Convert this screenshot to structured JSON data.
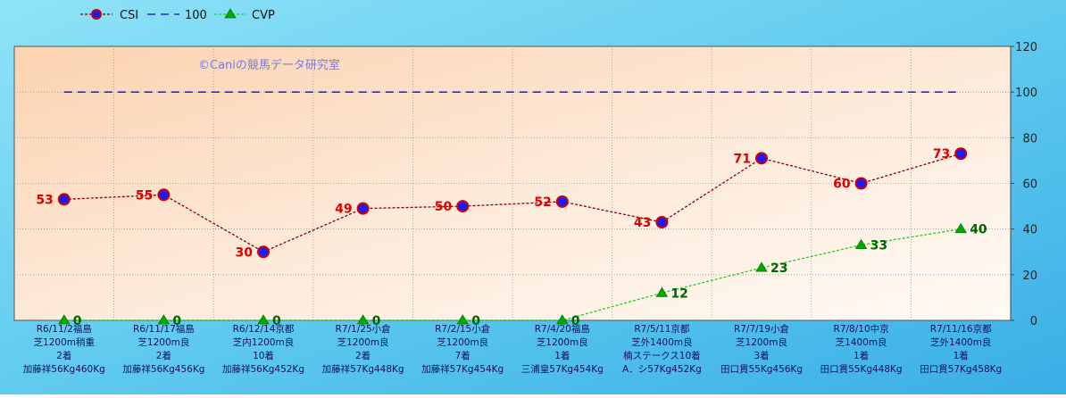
{
  "watermark": "©Caniの競馬データ研究室",
  "legend": [
    {
      "key": "csi",
      "label": "CSI"
    },
    {
      "key": "ref",
      "label": "100"
    },
    {
      "key": "cvp",
      "label": "CVP"
    }
  ],
  "colors": {
    "csi_line": "#8b0000",
    "csi_marker_fill": "#1a1aff",
    "csi_marker_edge": "#cc0000",
    "csi_label": "#e00000",
    "ref_line": "#2a2ad0",
    "cvp_line": "#22cc22",
    "cvp_marker": "#00aa00",
    "cvp_label": "#006400",
    "label_text": "#101060"
  },
  "chart_data": {
    "type": "line",
    "categories": [
      [
        "R6/11/2福島",
        "芝1200m稍重",
        "2着",
        "加藤祥56Kg460Kg"
      ],
      [
        "R6/11/17福島",
        "芝1200m良",
        "2着",
        "加藤祥56Kg456Kg"
      ],
      [
        "R6/12/14京都",
        "芝内1200m良",
        "10着",
        "加藤祥56Kg452Kg"
      ],
      [
        "R7/1/25小倉",
        "芝1200m良",
        "2着",
        "加藤祥57Kg448Kg"
      ],
      [
        "R7/2/15小倉",
        "芝1200m良",
        "7着",
        "加藤祥57Kg454Kg"
      ],
      [
        "R7/4/20福島",
        "芝1200m良",
        "1着",
        "三浦皇57Kg454Kg"
      ],
      [
        "R7/5/11京都",
        "芝外1400m良",
        "楠ステークス10着",
        "A．シ57Kg452Kg"
      ],
      [
        "R7/7/19小倉",
        "芝1200m良",
        "3着",
        "田口貫55Kg456Kg"
      ],
      [
        "R7/8/10中京",
        "芝1400m良",
        "1着",
        "田口貫55Kg448Kg"
      ],
      [
        "R7/11/16京都",
        "芝外1400m良",
        "1着",
        "田口貫57Kg458Kg"
      ]
    ],
    "series": [
      {
        "name": "CSI",
        "values": [
          53,
          55,
          30,
          49,
          50,
          52,
          43,
          71,
          60,
          73
        ]
      },
      {
        "name": "100",
        "values": [
          100,
          100,
          100,
          100,
          100,
          100,
          100,
          100,
          100,
          100
        ]
      },
      {
        "name": "CVP",
        "values": [
          0,
          0,
          0,
          0,
          0,
          0,
          12,
          23,
          33,
          40
        ]
      }
    ],
    "y_ticks": [
      "0",
      "20",
      "40",
      "60",
      "80",
      "100",
      "120"
    ],
    "ylim": [
      0,
      120
    ],
    "y_axis_side": "right",
    "grid": true,
    "legend_position": "top-left"
  }
}
